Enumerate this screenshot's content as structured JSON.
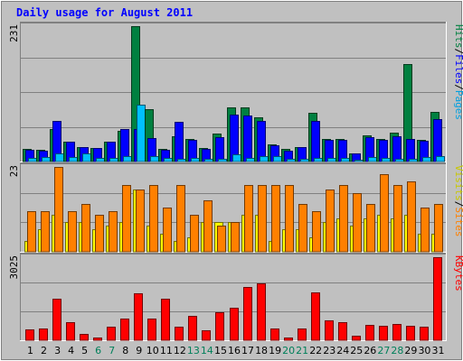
{
  "chart_data": [
    {
      "type": "bar",
      "title": "Daily usage for August 2011",
      "x": [
        "1",
        "2",
        "3",
        "4",
        "5",
        "6",
        "7",
        "8",
        "9",
        "10",
        "11",
        "12",
        "13",
        "14",
        "15",
        "16",
        "17",
        "18",
        "19",
        "20",
        "21",
        "22",
        "23",
        "24",
        "25",
        "26",
        "27",
        "28",
        "29",
        "30",
        "31"
      ],
      "weekend_days": [
        "6",
        "7",
        "13",
        "14",
        "20",
        "21",
        "27",
        "28"
      ],
      "max_label": "231",
      "ylim": [
        0,
        231
      ],
      "series": [
        {
          "name": "Hits",
          "color": "#008040",
          "values": [
            21,
            20,
            56,
            34,
            24,
            23,
            34,
            53,
            231,
            90,
            21,
            43,
            38,
            23,
            48,
            93,
            93,
            76,
            29,
            21,
            24,
            83,
            39,
            38,
            14,
            44,
            39,
            49,
            166,
            37,
            85
          ]
        },
        {
          "name": "Files",
          "color": "#0000FF",
          "values": [
            20,
            18,
            70,
            34,
            24,
            23,
            34,
            55,
            55,
            40,
            20,
            68,
            37,
            21,
            42,
            80,
            78,
            70,
            27,
            19,
            24,
            70,
            37,
            37,
            14,
            42,
            37,
            43,
            38,
            35,
            72
          ]
        },
        {
          "name": "Pages",
          "color": "#00C0FF",
          "values": [
            6,
            7,
            14,
            8,
            14,
            6,
            6,
            9,
            97,
            10,
            6,
            4,
            6,
            4,
            4,
            13,
            6,
            9,
            9,
            4,
            4,
            6,
            6,
            6,
            3,
            7,
            6,
            5,
            4,
            7,
            9
          ]
        }
      ],
      "side_labels": [
        "Pages",
        "/",
        "Files",
        "/",
        "Hits"
      ]
    },
    {
      "type": "bar",
      "max_label": "23",
      "ylim": [
        0,
        23
      ],
      "series": [
        {
          "name": "Visits",
          "color": "#FFFF00",
          "values": [
            3,
            6,
            10,
            8,
            8,
            6,
            7,
            8,
            17,
            7,
            5,
            3,
            4,
            8,
            8,
            8,
            10,
            10,
            3,
            6,
            6,
            4,
            8,
            9,
            7,
            9,
            10,
            9,
            10,
            5,
            5
          ]
        },
        {
          "name": "Sites",
          "color": "#FF8000",
          "values": [
            11,
            11,
            23,
            11,
            13,
            10,
            11,
            18,
            17,
            18,
            12,
            18,
            10,
            14,
            7,
            8,
            18,
            18,
            18,
            18,
            13,
            11,
            17,
            18,
            16,
            13,
            21,
            18,
            19,
            12,
            13
          ]
        }
      ],
      "side_labels": [
        "Sites",
        "/",
        "Visits"
      ]
    },
    {
      "type": "bar",
      "max_label": "3025",
      "ylim": [
        0,
        3025
      ],
      "series": [
        {
          "name": "KBytes",
          "color": "#FF0000",
          "values": [
            390,
            418,
            1528,
            650,
            214,
            115,
            490,
            790,
            1720,
            790,
            1520,
            495,
            895,
            350,
            1025,
            1170,
            1940,
            2060,
            430,
            100,
            415,
            1740,
            730,
            660,
            160,
            570,
            520,
            590,
            530,
            490,
            3025
          ]
        }
      ],
      "side_labels": [
        "KBytes"
      ]
    }
  ]
}
